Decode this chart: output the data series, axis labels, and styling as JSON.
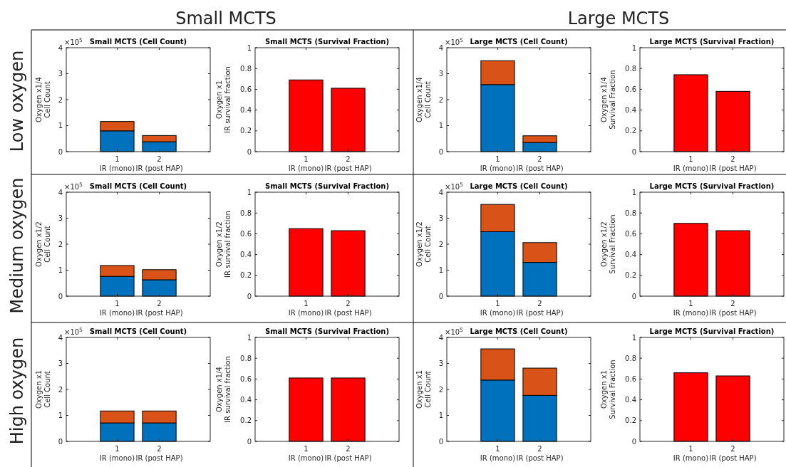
{
  "chart_data": [
    {
      "type": "bar",
      "title": "Small MCTS (Cell Count)",
      "ylabel": "Oxygen x1/4\nCell Count",
      "categories": [
        "1\nIR (mono)",
        "2\nIR (post HAP)"
      ],
      "stacked": true,
      "series": [
        {
          "color": "#0072bd",
          "values": [
            0.8,
            0.38
          ]
        },
        {
          "color": "#d95319",
          "values": [
            0.36,
            0.24
          ]
        }
      ],
      "ylim": [
        0,
        4
      ],
      "yticks": [
        0,
        1,
        2,
        3,
        4
      ],
      "annotations": [
        "×10$^{5}$",
        "Small MCTS",
        "Low oxygen"
      ]
    },
    {
      "type": "bar",
      "title": "Small MCTS (Survival Fraction)",
      "ylabel": "Oxygen x1\nIR survival fraction",
      "categories": [
        "1\nIR (mono)",
        "2\nIR (post HAP)"
      ],
      "values": [
        0.69,
        0.61
      ],
      "color": "#ff0000",
      "ylim": [
        0,
        1
      ],
      "yticks": [
        0,
        0.2,
        0.4,
        0.6,
        0.8,
        1
      ]
    },
    {
      "type": "bar",
      "title": "Large MCTS (Cell Count)",
      "ylabel": "Oxygen x1/4\nCell Count",
      "categories": [
        "1\nIR (mono)",
        "2\nIR (post HAP)"
      ],
      "stacked": true,
      "series": [
        {
          "color": "#0072bd",
          "values": [
            2.58,
            0.35
          ]
        },
        {
          "color": "#d95319",
          "values": [
            0.92,
            0.26
          ]
        }
      ],
      "ylim": [
        0,
        4
      ],
      "yticks": [
        0,
        1,
        2,
        3,
        4
      ],
      "annotations": [
        "×10$^{5}$",
        "Large MCTS"
      ]
    },
    {
      "type": "bar",
      "title": "Large MCTS (Survival Fraction)",
      "ylabel": "Oxygen x1/4\nSurvival Fraction",
      "categories": [
        "1\nIR (mono)",
        "2\nIR (post HAP)"
      ],
      "values": [
        0.74,
        0.58
      ],
      "color": "#ff0000",
      "ylim": [
        0,
        1
      ],
      "yticks": [
        0,
        0.2,
        0.4,
        0.6,
        0.8,
        1
      ]
    },
    {
      "type": "bar",
      "title": "Small MCTS (Cell Count)",
      "ylabel": "Oxygen x1/2\nCell Count",
      "categories": [
        "1\nIR (mono)",
        "2\nIR (post HAP)"
      ],
      "stacked": true,
      "series": [
        {
          "color": "#0072bd",
          "values": [
            0.76,
            0.63
          ]
        },
        {
          "color": "#d95319",
          "values": [
            0.42,
            0.39
          ]
        }
      ],
      "ylim": [
        0,
        4
      ],
      "yticks": [
        0,
        1,
        2,
        3,
        4
      ],
      "annotations": [
        "×10$^{5}$",
        "Medium oxygen"
      ]
    },
    {
      "type": "bar",
      "title": "Small MCTS (Survival Fraction)",
      "ylabel": "Oxygen x1/2\nIR survival fraction",
      "categories": [
        "1\nIR (mono)",
        "2\nIR (post HAP)"
      ],
      "values": [
        0.65,
        0.63
      ],
      "color": "#ff0000",
      "ylim": [
        0,
        1
      ],
      "yticks": [
        0,
        0.2,
        0.4,
        0.6,
        0.8,
        1
      ]
    },
    {
      "type": "bar",
      "title": "Large MCTS (Cell Count)",
      "ylabel": "Oxygen x1/2\nCell Count",
      "categories": [
        "1\nIR (mono)",
        "2\nIR (post HAP)"
      ],
      "stacked": true,
      "series": [
        {
          "color": "#0072bd",
          "values": [
            2.48,
            1.3
          ]
        },
        {
          "color": "#d95319",
          "values": [
            1.05,
            0.76
          ]
        }
      ],
      "ylim": [
        0,
        4
      ],
      "yticks": [
        0,
        1,
        2,
        3,
        4
      ],
      "annotations": [
        "×10$^{5}$"
      ]
    },
    {
      "type": "bar",
      "title": "Large MCTS (Survival Fraction)",
      "ylabel": "Oxygen x1/2\nSurvival Fraction",
      "categories": [
        "1\nIR (mono)",
        "2\nIR (post HAP)"
      ],
      "values": [
        0.7,
        0.63
      ],
      "color": "#ff0000",
      "ylim": [
        0,
        1
      ],
      "yticks": [
        0,
        0.2,
        0.4,
        0.6,
        0.8,
        1
      ]
    },
    {
      "type": "bar",
      "title": "Small MCTS (Cell Count)",
      "ylabel": "Oxygen x1\nCell Count",
      "categories": [
        "1\nIR (mono)",
        "2\nIR (post HAP)"
      ],
      "stacked": true,
      "series": [
        {
          "color": "#0072bd",
          "values": [
            0.71,
            0.71
          ]
        },
        {
          "color": "#d95319",
          "values": [
            0.46,
            0.46
          ]
        }
      ],
      "ylim": [
        0,
        4
      ],
      "yticks": [
        0,
        1,
        2,
        3,
        4
      ],
      "annotations": [
        "×10$^{5}$",
        "High oxygen"
      ]
    },
    {
      "type": "bar",
      "title": "Small MCTS (Survival Fraction)",
      "ylabel": "Oxygen x1/4\nIR survival fraction",
      "categories": [
        "1\nIR (mono)",
        "2\nIR (post HAP)"
      ],
      "values": [
        0.61,
        0.61
      ],
      "color": "#ff0000",
      "ylim": [
        0,
        1
      ],
      "yticks": [
        0,
        0.2,
        0.4,
        0.6,
        0.8,
        1
      ]
    },
    {
      "type": "bar",
      "title": "Large MCTS (Cell Count)",
      "ylabel": "Oxygen x1\nCell Count",
      "categories": [
        "1\nIR (mono)",
        "2\nIR (post HAP)"
      ],
      "stacked": true,
      "series": [
        {
          "color": "#0072bd",
          "values": [
            2.36,
            1.77
          ]
        },
        {
          "color": "#d95319",
          "values": [
            1.2,
            1.05
          ]
        }
      ],
      "ylim": [
        0,
        4
      ],
      "yticks": [
        0,
        1,
        2,
        3,
        4
      ],
      "annotations": [
        "×10$^{5}$"
      ]
    },
    {
      "type": "bar",
      "title": "Large MCTS (Survival Fraction)",
      "ylabel": "Oxygen x1\nSurvival Fraction",
      "categories": [
        "1\nIR (mono)",
        "2\nIR (post HAP)"
      ],
      "values": [
        0.66,
        0.63
      ],
      "color": "#ff0000",
      "ylim": [
        0,
        1
      ],
      "yticks": [
        0,
        0.2,
        0.4,
        0.6,
        0.8,
        1
      ]
    }
  ]
}
